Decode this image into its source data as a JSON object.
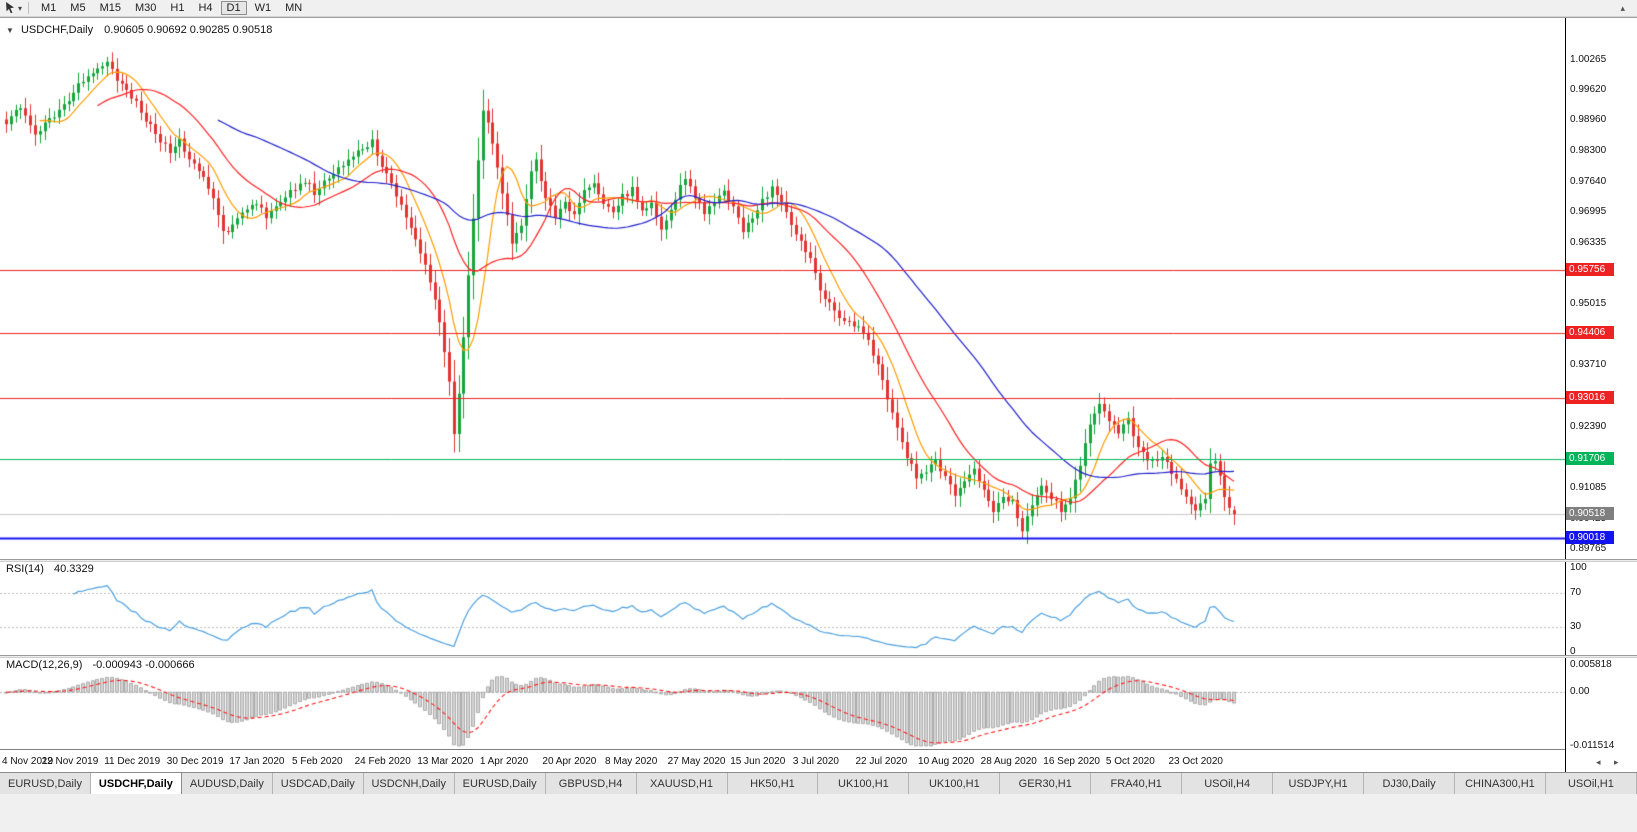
{
  "icons": {
    "caret": "▾",
    "collapse": "▼",
    "overflow": "▴",
    "scroll_left": "◂",
    "scroll_right": "▸",
    "cursor_tool": "crosshair-cursor"
  },
  "toolbar": {
    "timeframes": [
      "M1",
      "M5",
      "M15",
      "M30",
      "H1",
      "H4",
      "D1",
      "W1",
      "MN"
    ],
    "active_timeframe": "D1"
  },
  "chart": {
    "legend": {
      "symbol": "USDCHF,Daily",
      "ohlc": "0.90605 0.90692 0.90285 0.90518"
    },
    "ylim": [
      0.896,
      1.0105
    ],
    "price_axis_ticks": [
      "1.00265",
      "0.99620",
      "0.98960",
      "0.98300",
      "0.97640",
      "0.96995",
      "0.96335",
      "0.95675",
      "0.95015",
      "0.94370",
      "0.93710",
      "0.93050",
      "0.92390",
      "0.91745",
      "0.91085",
      "0.90425",
      "0.89765"
    ],
    "levels": [
      {
        "value": 0.95756,
        "label": "0.95756",
        "color": "#ee2222",
        "line_width": 1
      },
      {
        "value": 0.94406,
        "label": "0.94406",
        "color": "#ee2222",
        "line_width": 1
      },
      {
        "value": 0.93016,
        "label": "0.93016",
        "color": "#ee2222",
        "line_width": 1
      },
      {
        "value": 0.91706,
        "label": "0.91706",
        "color": "#00b45a",
        "line_width": 1
      },
      {
        "value": 0.90018,
        "label": "0.90018",
        "color": "#1414f0",
        "line_width": 2
      }
    ],
    "bid": {
      "value": 0.90518,
      "label": "0.90518",
      "badge_color": "#7f7f7f",
      "line_color": "#c9c9c9"
    },
    "date_labels": [
      "4 Nov 2019",
      "22 Nov 2019",
      "11 Dec 2019",
      "30 Dec 2019",
      "17 Jan 2020",
      "5 Feb 2020",
      "24 Feb 2020",
      "13 Mar 2020",
      "1 Apr 2020",
      "20 Apr 2020",
      "8 May 2020",
      "27 May 2020",
      "15 Jun 2020",
      "3 Jul 2020",
      "22 Jul 2020",
      "10 Aug 2020",
      "28 Aug 2020",
      "16 Sep 2020",
      "5 Oct 2020",
      "23 Oct 2020"
    ],
    "date_label_step": 13
  },
  "indicators": {
    "rsi": {
      "name_label": "RSI(14)",
      "value_label": "40.3329",
      "period": 14,
      "axis_labels": [
        "100",
        "70",
        "30",
        "0"
      ],
      "axis_values": [
        100,
        70,
        30,
        0
      ],
      "guide_levels": [
        70,
        30
      ],
      "line_color": "#4da0e0",
      "ylim": [
        0,
        100
      ]
    },
    "macd": {
      "name_label": "MACD(12,26,9)",
      "values_label": "-0.000943 -0.000666",
      "fast": 12,
      "slow": 26,
      "signal": 9,
      "axis_labels": [
        "0.005818",
        "0.00",
        "-0.011514"
      ],
      "axis_values": [
        0.005818,
        0,
        -0.011514
      ],
      "ylim": [
        -0.011514,
        0.005818
      ],
      "histogram_fill": "#d4d4d4",
      "histogram_stroke": "#9e9e9e",
      "signal_color": "#ff1a1a"
    }
  },
  "chart_data": {
    "type": "candlestick",
    "symbol": "USDCHF",
    "timeframe": "Daily",
    "bars": 256,
    "up_color": "#17a63b",
    "down_color": "#e03532",
    "overlays": [
      {
        "name": "ma-fast",
        "kind": "sma",
        "period": 8,
        "color": "#ff9c00"
      },
      {
        "name": "ma-mid",
        "kind": "sma",
        "period": 20,
        "color": "#ff2222"
      },
      {
        "name": "ma-slow",
        "kind": "sma",
        "period": 45,
        "color": "#2020cc"
      }
    ],
    "last_candle": {
      "open": 0.90605,
      "high": 0.90692,
      "low": 0.90285,
      "close": 0.90518
    },
    "close_path": [
      [
        0,
        0.9895
      ],
      [
        3,
        0.9928
      ],
      [
        6,
        0.9868
      ],
      [
        9,
        0.99
      ],
      [
        12,
        0.9925
      ],
      [
        14,
        0.9958
      ],
      [
        17,
        0.9995
      ],
      [
        20,
        1.0018
      ],
      [
        21,
        1.0022
      ],
      [
        23,
        0.9988
      ],
      [
        26,
        0.9948
      ],
      [
        29,
        0.9898
      ],
      [
        32,
        0.9855
      ],
      [
        34,
        0.9832
      ],
      [
        36,
        0.9858
      ],
      [
        38,
        0.9812
      ],
      [
        40,
        0.9785
      ],
      [
        42,
        0.9755
      ],
      [
        44,
        0.969
      ],
      [
        45,
        0.9655
      ],
      [
        47,
        0.9672
      ],
      [
        49,
        0.97
      ],
      [
        52,
        0.9715
      ],
      [
        54,
        0.9692
      ],
      [
        57,
        0.9722
      ],
      [
        60,
        0.9752
      ],
      [
        62,
        0.9768
      ],
      [
        64,
        0.9742
      ],
      [
        66,
        0.9762
      ],
      [
        69,
        0.979
      ],
      [
        72,
        0.9818
      ],
      [
        75,
        0.9845
      ],
      [
        76,
        0.9852
      ],
      [
        78,
        0.9798
      ],
      [
        80,
        0.9762
      ],
      [
        82,
        0.9715
      ],
      [
        84,
        0.9668
      ],
      [
        86,
        0.9615
      ],
      [
        88,
        0.9555
      ],
      [
        90,
        0.9462
      ],
      [
        92,
        0.933
      ],
      [
        93,
        0.9225
      ],
      [
        94,
        0.9308
      ],
      [
        95,
        0.9425
      ],
      [
        96,
        0.9558
      ],
      [
        97,
        0.969
      ],
      [
        98,
        0.9815
      ],
      [
        99,
        0.9912
      ],
      [
        100,
        0.9888
      ],
      [
        102,
        0.9792
      ],
      [
        104,
        0.9698
      ],
      [
        105,
        0.9638
      ],
      [
        107,
        0.9668
      ],
      [
        109,
        0.9792
      ],
      [
        110,
        0.9808
      ],
      [
        112,
        0.9732
      ],
      [
        114,
        0.9692
      ],
      [
        116,
        0.9722
      ],
      [
        118,
        0.969
      ],
      [
        120,
        0.9748
      ],
      [
        122,
        0.9762
      ],
      [
        124,
        0.9722
      ],
      [
        126,
        0.97
      ],
      [
        128,
        0.9732
      ],
      [
        130,
        0.9748
      ],
      [
        132,
        0.9705
      ],
      [
        134,
        0.9718
      ],
      [
        136,
        0.9662
      ],
      [
        138,
        0.9705
      ],
      [
        140,
        0.9752
      ],
      [
        141,
        0.9768
      ],
      [
        143,
        0.973
      ],
      [
        145,
        0.97
      ],
      [
        147,
        0.9722
      ],
      [
        149,
        0.9745
      ],
      [
        151,
        0.9712
      ],
      [
        153,
        0.9662
      ],
      [
        155,
        0.9692
      ],
      [
        157,
        0.9722
      ],
      [
        159,
        0.9752
      ],
      [
        161,
        0.9718
      ],
      [
        163,
        0.9672
      ],
      [
        165,
        0.9638
      ],
      [
        167,
        0.9595
      ],
      [
        169,
        0.9532
      ],
      [
        171,
        0.9508
      ],
      [
        173,
        0.9478
      ],
      [
        175,
        0.9462
      ],
      [
        177,
        0.9448
      ],
      [
        179,
        0.9422
      ],
      [
        181,
        0.9372
      ],
      [
        183,
        0.9298
      ],
      [
        185,
        0.9232
      ],
      [
        187,
        0.9178
      ],
      [
        189,
        0.9128
      ],
      [
        191,
        0.9148
      ],
      [
        193,
        0.9162
      ],
      [
        195,
        0.9132
      ],
      [
        197,
        0.9088
      ],
      [
        199,
        0.9122
      ],
      [
        201,
        0.9152
      ],
      [
        203,
        0.9102
      ],
      [
        205,
        0.9058
      ],
      [
        207,
        0.9092
      ],
      [
        209,
        0.9078
      ],
      [
        211,
        0.9012
      ],
      [
        213,
        0.9072
      ],
      [
        215,
        0.9112
      ],
      [
        217,
        0.9088
      ],
      [
        219,
        0.9062
      ],
      [
        221,
        0.9092
      ],
      [
        223,
        0.9158
      ],
      [
        225,
        0.9242
      ],
      [
        227,
        0.9295
      ],
      [
        229,
        0.9248
      ],
      [
        231,
        0.9225
      ],
      [
        233,
        0.9252
      ],
      [
        234,
        0.9218
      ],
      [
        236,
        0.9182
      ],
      [
        238,
        0.9162
      ],
      [
        240,
        0.9178
      ],
      [
        242,
        0.9142
      ],
      [
        244,
        0.9105
      ],
      [
        246,
        0.9072
      ],
      [
        247,
        0.9058
      ],
      [
        249,
        0.9082
      ],
      [
        250,
        0.9158
      ],
      [
        251,
        0.9172
      ],
      [
        252,
        0.9128
      ],
      [
        253,
        0.9082
      ],
      [
        255,
        0.9052
      ]
    ]
  },
  "tabs": {
    "active_index": 1,
    "items": [
      "EURUSD,Daily",
      "USDCHF,Daily",
      "AUDUSD,Daily",
      "USDCAD,Daily",
      "USDCNH,Daily",
      "EURUSD,Daily",
      "GBPUSD,H4",
      "XAUUSD,H1",
      "HK50,H1",
      "UK100,H1",
      "UK100,H1",
      "GER30,H1",
      "FRA40,H1",
      "USOil,H4",
      "USDJPY,H1",
      "DJ30,Daily",
      "CHINA300,H1",
      "USOil,H1"
    ]
  }
}
